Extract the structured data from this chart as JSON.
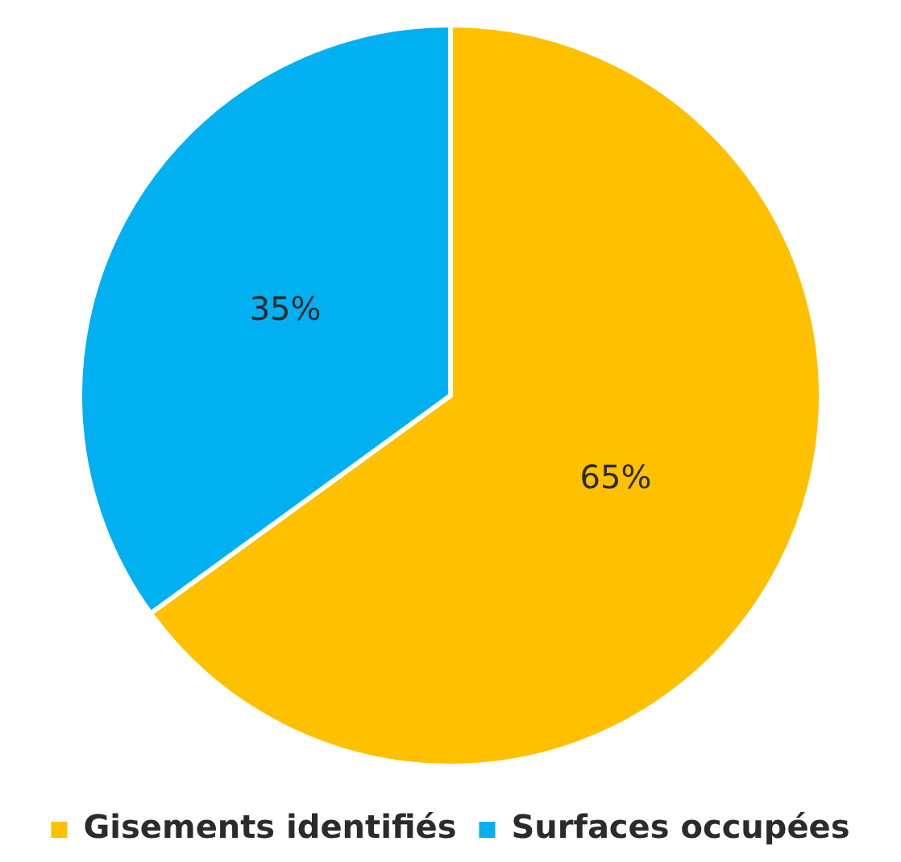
{
  "chart_data": {
    "type": "pie",
    "categories": [
      "Gisements identifiés",
      "Surfaces occupées"
    ],
    "values": [
      65,
      35
    ],
    "colors": [
      "#ffc000",
      "#00b0f0"
    ],
    "value_labels": [
      "65%",
      "35%"
    ],
    "legend": "bottom"
  }
}
